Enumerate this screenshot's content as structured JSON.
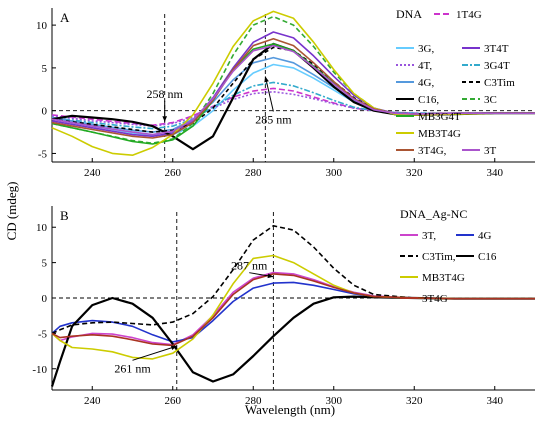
{
  "figure": {
    "shared_xlabel": "Wavelength (nm)",
    "shared_ylabel": "CD (mdeg)"
  },
  "chart_data": [
    {
      "type": "line",
      "panel_label": "A",
      "legend_title": "DNA",
      "xlim": [
        230,
        350
      ],
      "ylim": [
        -6,
        12
      ],
      "x_ticks": [
        240,
        260,
        280,
        300,
        320,
        340
      ],
      "y_ticks": [
        -5,
        0,
        5,
        10
      ],
      "grid": false,
      "legend_position": "right",
      "annotations": [
        {
          "text": "258 nm",
          "x": 258,
          "y": 1.5,
          "arrow_to": [
            258,
            -1.3
          ]
        },
        {
          "text": "285 nm",
          "x": 285,
          "y": -1.5,
          "arrow_to": [
            283,
            4.0
          ]
        }
      ],
      "reference_lines": {
        "horizontal_y": 0,
        "vertical_x": [
          258,
          283
        ]
      },
      "series": [
        {
          "name": "1T4G",
          "color": "#cc33cc",
          "dash": "6,3",
          "x": [
            230,
            240,
            250,
            255,
            260,
            265,
            270,
            275,
            280,
            285,
            290,
            295,
            300,
            305,
            310,
            315,
            320,
            330,
            340,
            350
          ],
          "y": [
            -0.5,
            -1.0,
            -1.5,
            -1.7,
            -1.4,
            -0.6,
            0.5,
            1.6,
            2.3,
            2.6,
            2.3,
            1.6,
            0.9,
            0.3,
            0.0,
            -0.2,
            -0.3,
            -0.3,
            -0.3,
            -0.3
          ]
        },
        {
          "name": "3G,",
          "color": "#66ccff",
          "dash": "",
          "x": [
            230,
            240,
            250,
            255,
            260,
            265,
            270,
            275,
            280,
            285,
            290,
            295,
            300,
            305,
            310,
            315,
            320,
            330,
            340,
            350
          ],
          "y": [
            -1.0,
            -1.8,
            -2.6,
            -2.9,
            -2.8,
            -1.8,
            0.0,
            2.4,
            4.4,
            5.4,
            5.0,
            3.8,
            2.4,
            1.0,
            0.0,
            -0.4,
            -0.5,
            -0.4,
            -0.3,
            -0.3
          ]
        },
        {
          "name": "3T4T",
          "color": "#7733cc",
          "dash": "",
          "x": [
            230,
            240,
            250,
            255,
            260,
            265,
            270,
            275,
            280,
            285,
            290,
            295,
            300,
            305,
            310,
            315,
            320,
            330,
            340,
            350
          ],
          "y": [
            -1.2,
            -2.0,
            -2.8,
            -3.0,
            -2.6,
            -1.2,
            1.5,
            5.0,
            8.0,
            9.2,
            8.5,
            6.4,
            4.0,
            1.8,
            0.3,
            -0.3,
            -0.4,
            -0.3,
            -0.3,
            -0.3
          ]
        },
        {
          "name": "4T,",
          "color": "#9955dd",
          "dash": "2,2",
          "x": [
            230,
            240,
            250,
            255,
            260,
            265,
            270,
            275,
            280,
            285,
            290,
            295,
            300,
            305,
            310,
            315,
            320,
            330,
            340,
            350
          ],
          "y": [
            -0.6,
            -1.2,
            -1.6,
            -1.8,
            -1.5,
            -0.8,
            0.3,
            1.3,
            2.0,
            2.2,
            1.9,
            1.4,
            0.8,
            0.3,
            0.0,
            -0.2,
            -0.3,
            -0.3,
            -0.3,
            -0.3
          ]
        },
        {
          "name": "3G4T",
          "color": "#33aacc",
          "dash": "6,2,2,2",
          "x": [
            230,
            240,
            250,
            255,
            260,
            265,
            270,
            275,
            280,
            285,
            290,
            295,
            300,
            305,
            310,
            315,
            320,
            330,
            340,
            350
          ],
          "y": [
            -0.8,
            -1.4,
            -1.9,
            -2.1,
            -1.8,
            -1.0,
            0.4,
            1.8,
            2.9,
            3.3,
            2.9,
            2.1,
            1.2,
            0.4,
            0.0,
            -0.2,
            -0.3,
            -0.3,
            -0.3,
            -0.3
          ]
        },
        {
          "name": "4G,",
          "color": "#5599dd",
          "dash": "",
          "x": [
            230,
            240,
            250,
            255,
            260,
            265,
            270,
            275,
            280,
            285,
            290,
            295,
            300,
            305,
            310,
            315,
            320,
            330,
            340,
            350
          ],
          "y": [
            -0.8,
            -1.6,
            -2.3,
            -2.5,
            -2.2,
            -1.0,
            1.0,
            3.6,
            5.6,
            6.2,
            5.6,
            4.2,
            2.7,
            1.2,
            0.1,
            -0.3,
            -0.4,
            -0.3,
            -0.3,
            -0.3
          ]
        },
        {
          "name": "C3Tim",
          "color": "#000000",
          "dash": "4,3",
          "x": [
            230,
            240,
            250,
            255,
            260,
            265,
            270,
            275,
            280,
            285,
            290,
            295,
            300,
            305,
            310,
            315,
            320,
            330,
            340,
            350
          ],
          "y": [
            -1.0,
            -1.6,
            -2.2,
            -2.5,
            -2.3,
            -1.5,
            0.3,
            3.2,
            6.0,
            7.4,
            7.0,
            5.4,
            3.4,
            1.5,
            0.2,
            -0.3,
            -0.4,
            -0.3,
            -0.3,
            -0.3
          ]
        },
        {
          "name": "C16,",
          "color": "#000000",
          "dash": "",
          "width": 2.2,
          "x": [
            230,
            235,
            240,
            245,
            250,
            255,
            260,
            265,
            270,
            275,
            280,
            285,
            290,
            295,
            300,
            305,
            310,
            315,
            320,
            330,
            340,
            350
          ],
          "y": [
            -1.0,
            -0.6,
            -0.8,
            -1.0,
            -1.3,
            -1.8,
            -3.0,
            -4.5,
            -3.0,
            1.5,
            6.0,
            7.8,
            7.0,
            5.0,
            2.8,
            1.0,
            0.0,
            -0.4,
            -0.5,
            -0.4,
            -0.3,
            -0.3
          ]
        },
        {
          "name": "3C",
          "color": "#33aa33",
          "dash": "5,3",
          "x": [
            230,
            240,
            250,
            255,
            260,
            265,
            270,
            275,
            280,
            285,
            290,
            295,
            300,
            305,
            310,
            315,
            320,
            330,
            340,
            350
          ],
          "y": [
            -1.5,
            -2.5,
            -3.5,
            -3.8,
            -3.3,
            -1.5,
            2.0,
            6.5,
            10.0,
            11.0,
            10.0,
            7.5,
            4.5,
            2.0,
            0.3,
            -0.4,
            -0.5,
            -0.4,
            -0.3,
            -0.3
          ]
        },
        {
          "name": "MB3G4T",
          "color": "#22aa22",
          "dash": "",
          "x": [
            230,
            240,
            250,
            255,
            260,
            265,
            270,
            275,
            280,
            285,
            290,
            295,
            300,
            305,
            310,
            315,
            320,
            330,
            340,
            350
          ],
          "y": [
            -1.5,
            -2.5,
            -3.6,
            -3.9,
            -3.4,
            -1.8,
            1.2,
            4.8,
            7.2,
            7.8,
            7.0,
            5.2,
            3.2,
            1.4,
            0.2,
            -0.3,
            -0.4,
            -0.3,
            -0.3,
            -0.3
          ]
        },
        {
          "name": "MB3T4G",
          "color": "#cccc00",
          "dash": "",
          "x": [
            230,
            235,
            240,
            245,
            250,
            255,
            260,
            265,
            270,
            275,
            280,
            285,
            290,
            295,
            300,
            305,
            310,
            315,
            320,
            330,
            340,
            350
          ],
          "y": [
            -2.0,
            -3.0,
            -4.2,
            -5.0,
            -5.2,
            -4.3,
            -2.8,
            -0.5,
            3.2,
            7.5,
            10.5,
            11.6,
            10.8,
            8.0,
            4.8,
            2.0,
            0.3,
            -0.4,
            -0.5,
            -0.4,
            -0.3,
            -0.3
          ]
        },
        {
          "name": "3T4G,",
          "color": "#aa5533",
          "dash": "",
          "x": [
            230,
            240,
            250,
            255,
            260,
            265,
            270,
            275,
            280,
            285,
            290,
            295,
            300,
            305,
            310,
            315,
            320,
            330,
            340,
            350
          ],
          "y": [
            -1.4,
            -2.2,
            -3.0,
            -3.2,
            -2.8,
            -1.4,
            1.2,
            4.8,
            7.6,
            8.4,
            7.6,
            5.6,
            3.4,
            1.4,
            0.2,
            -0.3,
            -0.4,
            -0.3,
            -0.3,
            -0.3
          ]
        },
        {
          "name": "3T",
          "color": "#aa55cc",
          "dash": "",
          "x": [
            230,
            240,
            250,
            255,
            260,
            265,
            270,
            275,
            280,
            285,
            290,
            295,
            300,
            305,
            310,
            315,
            320,
            330,
            340,
            350
          ],
          "y": [
            -1.0,
            -1.8,
            -2.5,
            -2.8,
            -2.4,
            -1.1,
            1.4,
            4.6,
            7.0,
            7.6,
            6.9,
            5.1,
            3.1,
            1.3,
            0.1,
            -0.3,
            -0.4,
            -0.3,
            -0.3,
            -0.3
          ]
        }
      ],
      "legend_layout": [
        {
          "series": [
            "1T4G"
          ]
        },
        {
          "series": [
            "3G,",
            "3T4T"
          ]
        },
        {
          "series": [
            "4T,",
            "3G4T"
          ]
        },
        {
          "series": [
            "4G,",
            "C3Tim"
          ]
        },
        {
          "series": [
            "C16,",
            "3C"
          ]
        },
        {
          "series": [
            "MB3G4T"
          ]
        },
        {
          "series": [
            "MB3T4G"
          ]
        },
        {
          "series": [
            "3T4G,",
            "3T"
          ]
        }
      ]
    },
    {
      "type": "line",
      "panel_label": "B",
      "legend_title": "DNA_Ag-NC",
      "xlim": [
        230,
        350
      ],
      "ylim": [
        -13,
        13
      ],
      "x_ticks": [
        240,
        260,
        280,
        300,
        320,
        340
      ],
      "y_ticks": [
        -10,
        -5,
        0,
        5,
        10
      ],
      "grid": false,
      "legend_position": "right",
      "annotations": [
        {
          "text": "287 nm",
          "x": 279,
          "y": 4.0,
          "arrow_to": [
            285,
            3.0
          ]
        },
        {
          "text": "261 nm",
          "x": 250,
          "y": -10.5,
          "arrow_to": [
            261,
            -6.8
          ]
        }
      ],
      "reference_lines": {
        "horizontal_y": 0,
        "vertical_x": [
          261,
          285
        ]
      },
      "series": [
        {
          "name": "3T,",
          "color": "#cc44cc",
          "dash": "",
          "x": [
            230,
            232,
            235,
            240,
            245,
            250,
            255,
            260,
            265,
            270,
            275,
            280,
            285,
            290,
            295,
            300,
            305,
            310,
            320,
            330,
            340,
            350
          ],
          "y": [
            -5.0,
            -6.0,
            -5.5,
            -5.0,
            -5.1,
            -5.6,
            -6.3,
            -6.6,
            -5.2,
            -2.5,
            0.8,
            2.8,
            3.6,
            3.4,
            2.6,
            1.6,
            0.8,
            0.3,
            0.0,
            -0.1,
            -0.1,
            -0.1
          ]
        },
        {
          "name": "4G",
          "color": "#2233cc",
          "dash": "",
          "x": [
            230,
            232,
            235,
            240,
            245,
            250,
            255,
            260,
            265,
            270,
            275,
            280,
            285,
            290,
            295,
            300,
            305,
            310,
            320,
            330,
            340,
            350
          ],
          "y": [
            -5.0,
            -4.0,
            -3.5,
            -3.2,
            -3.4,
            -4.0,
            -5.2,
            -6.2,
            -5.6,
            -3.2,
            -0.5,
            1.4,
            2.1,
            2.2,
            1.8,
            1.2,
            0.6,
            0.2,
            0.0,
            -0.1,
            -0.1,
            -0.1
          ]
        },
        {
          "name": "C3Tim,",
          "color": "#000000",
          "dash": "5,3",
          "x": [
            230,
            232,
            235,
            240,
            245,
            250,
            255,
            260,
            265,
            270,
            275,
            280,
            285,
            290,
            295,
            300,
            305,
            310,
            320,
            330,
            340,
            350
          ],
          "y": [
            -5.0,
            -4.5,
            -3.8,
            -3.5,
            -3.4,
            -3.6,
            -3.8,
            -3.4,
            -2.2,
            0.2,
            4.0,
            8.2,
            10.2,
            9.6,
            7.2,
            4.2,
            1.8,
            0.5,
            0.0,
            -0.1,
            -0.1,
            -0.1
          ]
        },
        {
          "name": "C16",
          "color": "#000000",
          "dash": "",
          "width": 2.2,
          "x": [
            230,
            232,
            235,
            240,
            245,
            250,
            255,
            260,
            265,
            270,
            275,
            280,
            285,
            290,
            295,
            300,
            305,
            310,
            320,
            330,
            340,
            350
          ],
          "y": [
            -12.5,
            -9.0,
            -4.0,
            -1.0,
            0.0,
            -0.8,
            -2.8,
            -6.5,
            -10.5,
            -11.8,
            -10.8,
            -8.2,
            -5.4,
            -2.8,
            -0.8,
            0.1,
            0.2,
            0.1,
            0.0,
            -0.1,
            -0.1,
            -0.1
          ]
        },
        {
          "name": "MB3T4G",
          "color": "#cccc00",
          "dash": "",
          "x": [
            230,
            232,
            235,
            240,
            245,
            250,
            255,
            260,
            265,
            270,
            275,
            280,
            285,
            290,
            295,
            300,
            305,
            310,
            320,
            330,
            340,
            350
          ],
          "y": [
            -5.0,
            -6.0,
            -7.0,
            -7.2,
            -7.6,
            -8.4,
            -8.6,
            -7.8,
            -5.8,
            -2.4,
            2.0,
            5.6,
            6.0,
            5.0,
            3.4,
            1.8,
            0.7,
            0.2,
            0.0,
            -0.1,
            -0.1,
            -0.1
          ]
        },
        {
          "name": "3T4G",
          "color": "#aa3322",
          "dash": "",
          "x": [
            230,
            232,
            235,
            240,
            245,
            250,
            255,
            260,
            265,
            270,
            275,
            280,
            285,
            290,
            295,
            300,
            305,
            310,
            320,
            330,
            340,
            350
          ],
          "y": [
            -5.0,
            -5.6,
            -5.4,
            -5.2,
            -5.4,
            -5.9,
            -6.5,
            -6.7,
            -5.4,
            -2.8,
            0.5,
            2.6,
            3.4,
            3.2,
            2.4,
            1.5,
            0.7,
            0.2,
            0.0,
            -0.1,
            -0.1,
            -0.1
          ]
        }
      ],
      "legend_layout": [
        {
          "series": [
            "3T,",
            "4G"
          ]
        },
        {
          "series": [
            "C3Tim,",
            "C16"
          ]
        },
        {
          "series": [
            "MB3T4G"
          ]
        },
        {
          "series": [
            "3T4G"
          ]
        }
      ]
    }
  ]
}
